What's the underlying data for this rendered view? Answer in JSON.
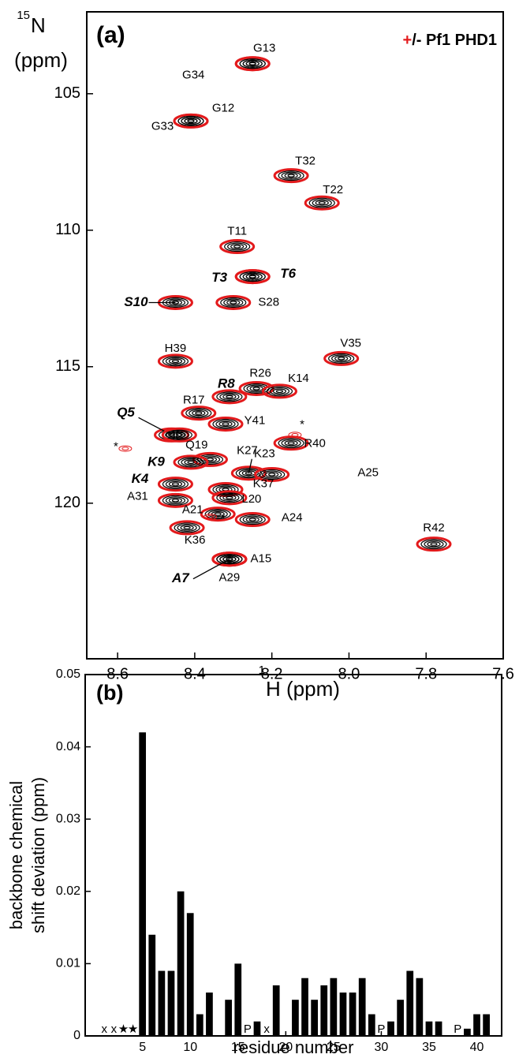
{
  "chart_data": [
    {
      "type": "scatter",
      "panel_label": "(a)",
      "legend": [
        {
          "text": "+",
          "color": "#e31a1c"
        },
        {
          "text": "/- Pf1 PHD1",
          "color": "#000000"
        }
      ],
      "xlabel_sup": "1",
      "xlabel": "H (ppm)",
      "ylabel_sup": "15",
      "ylabel": "N",
      "ylabel_unit": "(ppm)",
      "xlim": [
        8.68,
        7.6
      ],
      "ylim": [
        102,
        125.7
      ],
      "y_inverted": true,
      "xticks": [
        8.6,
        8.4,
        8.2,
        {
          "value": 8,
          "label": "8.0"
        },
        7.8,
        7.6
      ],
      "yticks": [
        105,
        110,
        115,
        120
      ],
      "free_color": "#000000",
      "bound_color": "#e31a1c",
      "peaks": [
        {
          "label": "G13",
          "x": 8.25,
          "y": 103.9
        },
        {
          "label": "G34",
          "x": 8.25,
          "y": 103.9
        },
        {
          "label": "G12",
          "x": 8.41,
          "y": 106.0
        },
        {
          "label": "G33",
          "x": 8.41,
          "y": 106.0
        },
        {
          "label": "T32",
          "x": 8.15,
          "y": 108.0
        },
        {
          "label": "T22",
          "x": 8.07,
          "y": 109.0
        },
        {
          "label": "T11",
          "x": 8.29,
          "y": 110.6
        },
        {
          "label": "T3",
          "x": 8.25,
          "y": 111.7,
          "bold": true
        },
        {
          "label": "T6",
          "x": 8.25,
          "y": 111.7,
          "bold": true
        },
        {
          "label": "S10",
          "x": 8.45,
          "y": 112.65,
          "bold": true
        },
        {
          "label": "S28",
          "x": 8.3,
          "y": 112.65
        },
        {
          "label": "V35",
          "x": 8.02,
          "y": 114.7
        },
        {
          "label": "H39",
          "x": 8.45,
          "y": 114.8
        },
        {
          "label": "R26",
          "x": 8.24,
          "y": 115.8
        },
        {
          "label": "K14",
          "x": 8.18,
          "y": 115.9
        },
        {
          "label": "R8",
          "x": 8.31,
          "y": 116.1,
          "bold": true
        },
        {
          "label": "R17",
          "x": 8.39,
          "y": 116.7
        },
        {
          "label": "Y41",
          "x": 8.32,
          "y": 117.1
        },
        {
          "label": "Q5",
          "x": 8.46,
          "y": 117.5,
          "bold": true
        },
        {
          "label": "Q19",
          "x": 8.44,
          "y": 117.5
        },
        {
          "label": "R40",
          "x": 8.15,
          "y": 117.8
        },
        {
          "label": "K27",
          "x": 8.36,
          "y": 118.4
        },
        {
          "label": "K9",
          "x": 8.41,
          "y": 118.5,
          "bold": true
        },
        {
          "label": "K23",
          "x": 8.26,
          "y": 118.9
        },
        {
          "label": "A25",
          "x": 8.2,
          "y": 118.95
        },
        {
          "label": "K4",
          "x": 8.45,
          "y": 119.3,
          "bold": true
        },
        {
          "label": "K37",
          "x": 8.32,
          "y": 119.5
        },
        {
          "label": "L20",
          "x": 8.31,
          "y": 119.8
        },
        {
          "label": "A31",
          "x": 8.45,
          "y": 119.9
        },
        {
          "label": "A21",
          "x": 8.34,
          "y": 120.4
        },
        {
          "label": "A24",
          "x": 8.25,
          "y": 120.6
        },
        {
          "label": "R42",
          "x": 7.78,
          "y": 121.5
        },
        {
          "label": "K36",
          "x": 8.42,
          "y": 120.9
        },
        {
          "label": "A15",
          "x": 8.31,
          "y": 122.05
        },
        {
          "label": "A29",
          "x": 8.31,
          "y": 122.05
        },
        {
          "label": "A7",
          "x": 8.31,
          "y": 122.05,
          "bold": true
        },
        {
          "label": "*",
          "x": 8.58,
          "y": 118.0,
          "bound_only": true
        },
        {
          "label": "*",
          "x": 8.14,
          "y": 117.5,
          "bound_only": true
        },
        {
          "label": "*",
          "x": 8.36,
          "y": 120.5,
          "bound_only": true
        }
      ]
    },
    {
      "type": "bar",
      "panel_label": "(b)",
      "ylabel": [
        "backbone chemical",
        "shift deviation (ppm)"
      ],
      "xlabel": "residue number",
      "x": [
        5,
        6,
        7,
        8,
        9,
        10,
        11,
        12,
        14,
        15,
        17,
        19,
        21,
        22,
        23,
        24,
        25,
        26,
        27,
        28,
        29,
        31,
        32,
        33,
        34,
        35,
        36,
        39,
        40,
        41
      ],
      "values": [
        0.042,
        0.014,
        0.009,
        0.009,
        0.02,
        0.017,
        0.003,
        0.006,
        0.005,
        0.01,
        0.002,
        0.007,
        0.005,
        0.008,
        0.005,
        0.007,
        0.008,
        0.006,
        0.006,
        0.008,
        0.003,
        0.002,
        0.005,
        0.009,
        0.008,
        0.002,
        0.002,
        0.001,
        0.003,
        0.003
      ],
      "color": "#000000",
      "xlim": [
        -1,
        42.6
      ],
      "ylim": [
        0,
        0.05
      ],
      "xticks": [
        5,
        10,
        15,
        20,
        25,
        30,
        35,
        40
      ],
      "yticks": [
        0,
        0.01,
        0.02,
        0.03,
        0.04,
        0.05
      ],
      "annotations": [
        {
          "x": 1,
          "text": "x"
        },
        {
          "x": 2,
          "text": "x"
        },
        {
          "x": 3,
          "text": "★"
        },
        {
          "x": 4,
          "text": "★"
        },
        {
          "x": 16,
          "text": "P"
        },
        {
          "x": 18,
          "text": "x"
        },
        {
          "x": 30,
          "text": "P"
        },
        {
          "x": 38,
          "text": "P"
        }
      ]
    }
  ]
}
